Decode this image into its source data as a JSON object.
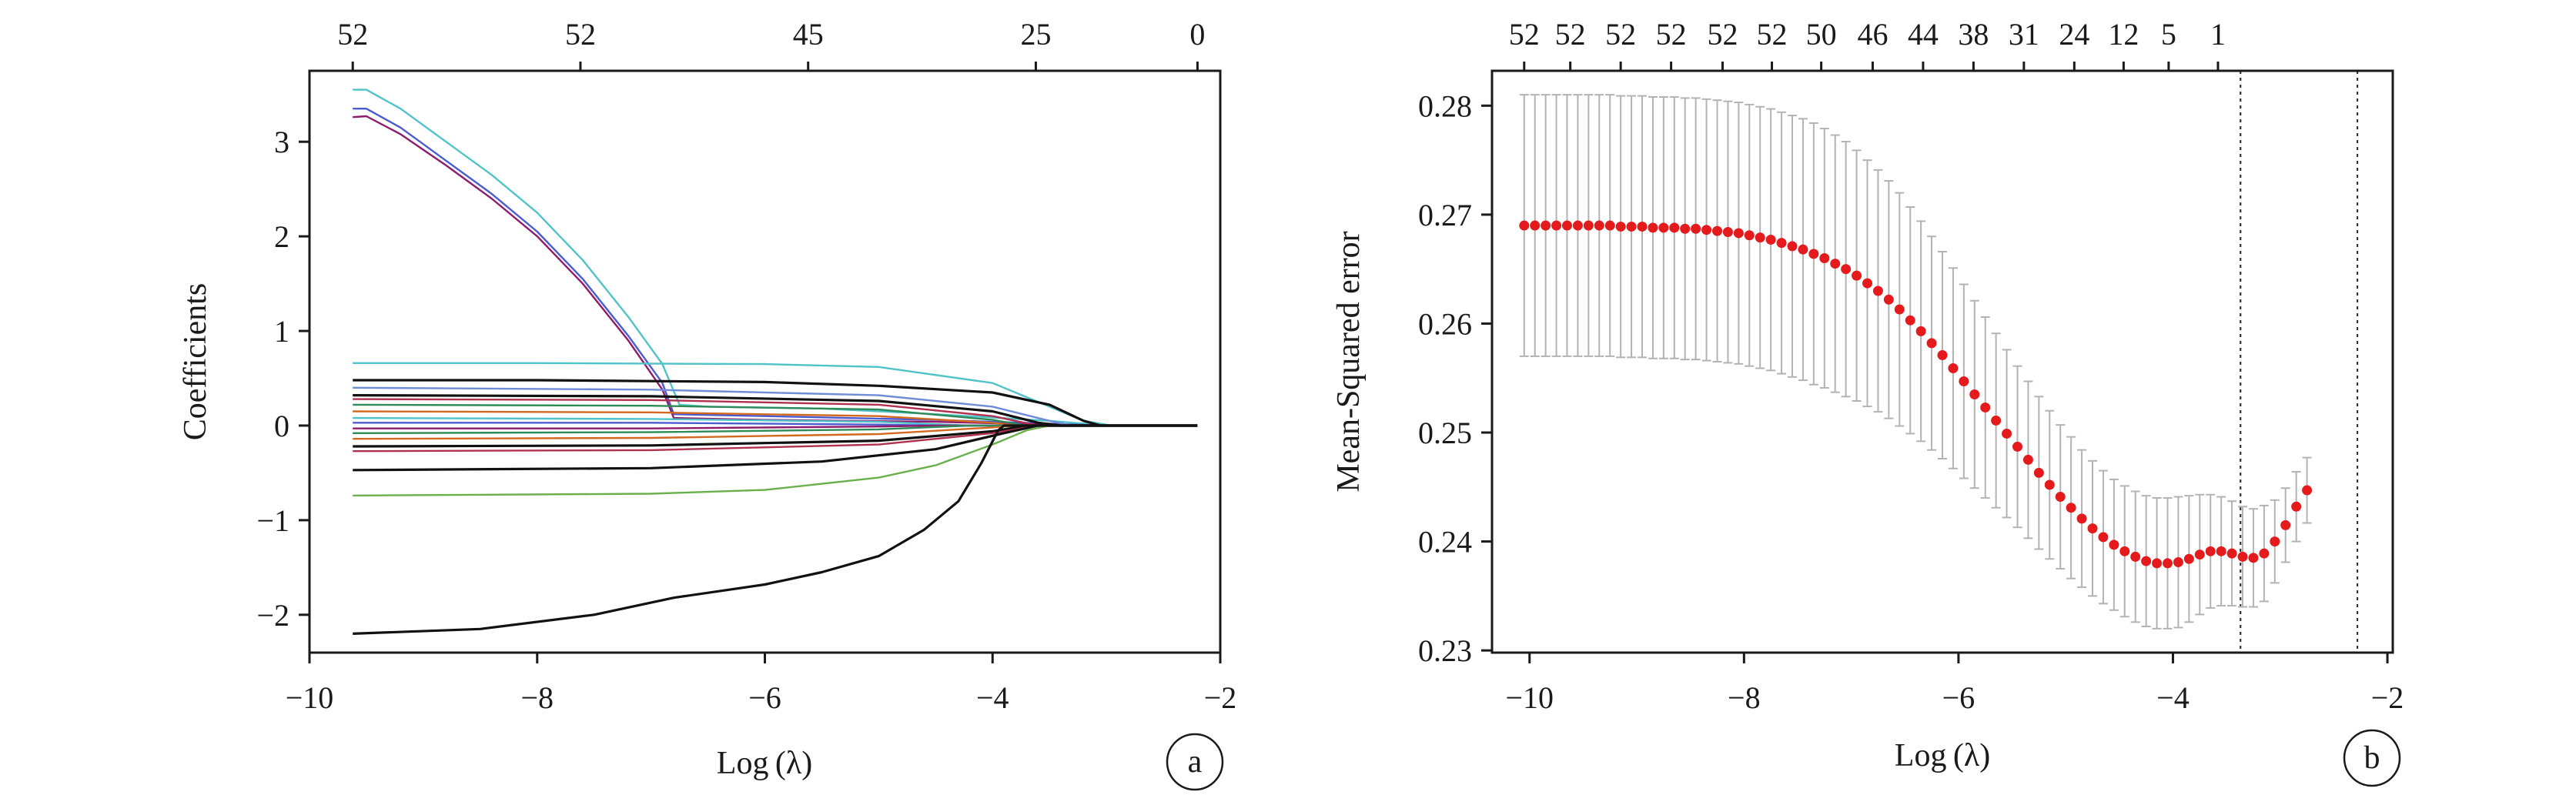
{
  "chart_data": [
    {
      "id": "a",
      "type": "line",
      "panel_label": "a",
      "xlabel": "Log (λ)",
      "ylabel": "Coefficients",
      "xlim": [
        -10,
        -2
      ],
      "ylim": [
        -2.4,
        3.75
      ],
      "xticks": [
        -10,
        -8,
        -6,
        -4,
        -2
      ],
      "xtick_labels": [
        "−10",
        "−8",
        "−6",
        "−4",
        "−2"
      ],
      "yticks": [
        -2,
        -1,
        0,
        1,
        2,
        3
      ],
      "ytick_labels": [
        "−2",
        "−1",
        "0",
        "1",
        "2",
        "3"
      ],
      "top_ticks": [
        {
          "x": -9.62,
          "label": "52"
        },
        {
          "x": -7.62,
          "label": "52"
        },
        {
          "x": -5.62,
          "label": "45"
        },
        {
          "x": -3.62,
          "label": "25"
        },
        {
          "x": -2.2,
          "label": "0"
        }
      ],
      "grid": false,
      "series": [
        {
          "color": "#4fc3c8",
          "points": [
            [
              -9.62,
              3.55
            ],
            [
              -9.5,
              3.55
            ],
            [
              -9.2,
              3.35
            ],
            [
              -8.8,
              3.0
            ],
            [
              -8.4,
              2.65
            ],
            [
              -8.0,
              2.25
            ],
            [
              -7.6,
              1.75
            ],
            [
              -7.2,
              1.15
            ],
            [
              -6.9,
              0.65
            ],
            [
              -6.75,
              0.22
            ],
            [
              -6.5,
              0.2
            ],
            [
              -5.5,
              0.18
            ],
            [
              -4.5,
              0.12
            ],
            [
              -3.5,
              0.05
            ],
            [
              -3.0,
              0.0
            ],
            [
              -2.2,
              0.0
            ]
          ]
        },
        {
          "color": "#4b5bd0",
          "points": [
            [
              -9.62,
              3.35
            ],
            [
              -9.5,
              3.35
            ],
            [
              -9.2,
              3.15
            ],
            [
              -8.8,
              2.8
            ],
            [
              -8.4,
              2.45
            ],
            [
              -8.0,
              2.05
            ],
            [
              -7.6,
              1.55
            ],
            [
              -7.2,
              0.95
            ],
            [
              -6.9,
              0.45
            ],
            [
              -6.8,
              0.12
            ],
            [
              -6.0,
              0.1
            ],
            [
              -4.5,
              0.06
            ],
            [
              -3.5,
              0.02
            ],
            [
              -3.0,
              0.0
            ],
            [
              -2.2,
              0.0
            ]
          ]
        },
        {
          "color": "#8e1b6b",
          "points": [
            [
              -9.62,
              3.26
            ],
            [
              -9.5,
              3.27
            ],
            [
              -9.2,
              3.08
            ],
            [
              -8.8,
              2.75
            ],
            [
              -8.4,
              2.4
            ],
            [
              -8.0,
              2.0
            ],
            [
              -7.6,
              1.5
            ],
            [
              -7.2,
              0.9
            ],
            [
              -6.9,
              0.38
            ],
            [
              -6.8,
              0.08
            ],
            [
              -6.0,
              0.06
            ],
            [
              -4.5,
              0.04
            ],
            [
              -3.5,
              0.01
            ],
            [
              -3.0,
              0.0
            ],
            [
              -2.2,
              0.0
            ]
          ]
        },
        {
          "color": "#4fc3c8",
          "points": [
            [
              -9.62,
              0.66
            ],
            [
              -8.0,
              0.66
            ],
            [
              -6.0,
              0.65
            ],
            [
              -5.0,
              0.62
            ],
            [
              -4.0,
              0.45
            ],
            [
              -3.5,
              0.2
            ],
            [
              -3.2,
              0.05
            ],
            [
              -2.95,
              0.0
            ],
            [
              -2.2,
              0.0
            ]
          ]
        },
        {
          "color": "#111111",
          "points": [
            [
              -9.62,
              0.48
            ],
            [
              -8.0,
              0.48
            ],
            [
              -6.0,
              0.46
            ],
            [
              -5.0,
              0.42
            ],
            [
              -4.0,
              0.35
            ],
            [
              -3.5,
              0.22
            ],
            [
              -3.2,
              0.05
            ],
            [
              -3.05,
              0.0
            ],
            [
              -2.2,
              0.0
            ]
          ]
        },
        {
          "color": "#6e8cd8",
          "points": [
            [
              -9.62,
              0.4
            ],
            [
              -7.0,
              0.38
            ],
            [
              -5.0,
              0.32
            ],
            [
              -4.0,
              0.2
            ],
            [
              -3.5,
              0.05
            ],
            [
              -3.3,
              0.0
            ],
            [
              -2.2,
              0.0
            ]
          ]
        },
        {
          "color": "#111111",
          "points": [
            [
              -9.62,
              0.32
            ],
            [
              -7.0,
              0.31
            ],
            [
              -5.0,
              0.26
            ],
            [
              -4.0,
              0.15
            ],
            [
              -3.6,
              0.03
            ],
            [
              -3.4,
              0.0
            ],
            [
              -2.2,
              0.0
            ]
          ]
        },
        {
          "color": "#b03050",
          "points": [
            [
              -9.62,
              0.28
            ],
            [
              -7.0,
              0.27
            ],
            [
              -5.0,
              0.22
            ],
            [
              -4.0,
              0.1
            ],
            [
              -3.6,
              0.0
            ],
            [
              -2.2,
              0.0
            ]
          ]
        },
        {
          "color": "#2e8b57",
          "points": [
            [
              -9.62,
              0.22
            ],
            [
              -7.0,
              0.21
            ],
            [
              -5.0,
              0.17
            ],
            [
              -4.0,
              0.06
            ],
            [
              -3.7,
              0.0
            ],
            [
              -2.2,
              0.0
            ]
          ]
        },
        {
          "color": "#d2691e",
          "points": [
            [
              -9.62,
              0.15
            ],
            [
              -7.0,
              0.14
            ],
            [
              -5.0,
              0.1
            ],
            [
              -4.0,
              0.03
            ],
            [
              -3.8,
              0.0
            ],
            [
              -2.2,
              0.0
            ]
          ]
        },
        {
          "color": "#4fc3c8",
          "points": [
            [
              -9.62,
              0.08
            ],
            [
              -7.0,
              0.07
            ],
            [
              -5.0,
              0.04
            ],
            [
              -4.2,
              0.0
            ],
            [
              -2.2,
              0.0
            ]
          ]
        },
        {
          "color": "#4b5bd0",
          "points": [
            [
              -9.62,
              0.03
            ],
            [
              -7.0,
              0.03
            ],
            [
              -5.0,
              0.01
            ],
            [
              -4.5,
              0.0
            ],
            [
              -2.2,
              0.0
            ]
          ]
        },
        {
          "color": "#8e1b6b",
          "points": [
            [
              -9.62,
              -0.03
            ],
            [
              -7.0,
              -0.03
            ],
            [
              -5.0,
              -0.01
            ],
            [
              -4.5,
              0.0
            ],
            [
              -2.2,
              0.0
            ]
          ]
        },
        {
          "color": "#2e8b57",
          "points": [
            [
              -9.62,
              -0.08
            ],
            [
              -7.0,
              -0.07
            ],
            [
              -5.0,
              -0.04
            ],
            [
              -4.2,
              0.0
            ],
            [
              -2.2,
              0.0
            ]
          ]
        },
        {
          "color": "#d2691e",
          "points": [
            [
              -9.62,
              -0.14
            ],
            [
              -7.0,
              -0.13
            ],
            [
              -5.0,
              -0.09
            ],
            [
              -4.0,
              -0.02
            ],
            [
              -3.8,
              0.0
            ],
            [
              -2.2,
              0.0
            ]
          ]
        },
        {
          "color": "#111111",
          "points": [
            [
              -9.62,
              -0.22
            ],
            [
              -7.0,
              -0.21
            ],
            [
              -5.0,
              -0.16
            ],
            [
              -4.0,
              -0.06
            ],
            [
              -3.7,
              0.0
            ],
            [
              -2.2,
              0.0
            ]
          ]
        },
        {
          "color": "#b03050",
          "points": [
            [
              -9.62,
              -0.27
            ],
            [
              -7.0,
              -0.26
            ],
            [
              -5.0,
              -0.2
            ],
            [
              -4.0,
              -0.08
            ],
            [
              -3.6,
              0.0
            ],
            [
              -2.2,
              0.0
            ]
          ]
        },
        {
          "color": "#111111",
          "points": [
            [
              -9.62,
              -0.47
            ],
            [
              -7.0,
              -0.45
            ],
            [
              -5.5,
              -0.38
            ],
            [
              -4.5,
              -0.25
            ],
            [
              -3.9,
              -0.08
            ],
            [
              -3.6,
              0.0
            ],
            [
              -2.2,
              0.0
            ]
          ]
        },
        {
          "color": "#6ab04c",
          "points": [
            [
              -9.62,
              -0.74
            ],
            [
              -7.0,
              -0.72
            ],
            [
              -6.0,
              -0.68
            ],
            [
              -5.0,
              -0.55
            ],
            [
              -4.5,
              -0.42
            ],
            [
              -4.0,
              -0.2
            ],
            [
              -3.7,
              -0.05
            ],
            [
              -3.5,
              0.0
            ],
            [
              -2.2,
              0.0
            ]
          ]
        },
        {
          "color": "#111111",
          "points": [
            [
              -9.62,
              -2.2
            ],
            [
              -8.5,
              -2.15
            ],
            [
              -7.5,
              -2.0
            ],
            [
              -6.8,
              -1.82
            ],
            [
              -6.0,
              -1.68
            ],
            [
              -5.5,
              -1.55
            ],
            [
              -5.0,
              -1.38
            ],
            [
              -4.6,
              -1.1
            ],
            [
              -4.3,
              -0.8
            ],
            [
              -4.1,
              -0.4
            ],
            [
              -3.95,
              -0.05
            ],
            [
              -3.9,
              0.0
            ],
            [
              -2.2,
              0.0
            ]
          ]
        }
      ]
    },
    {
      "id": "b",
      "type": "scatter",
      "panel_label": "b",
      "xlabel": "Log (λ)",
      "ylabel": "Mean-Squared error",
      "xlim": [
        -10.35,
        -1.95
      ],
      "ylim": [
        0.2298,
        0.2832
      ],
      "xticks": [
        -10,
        -8,
        -6,
        -4,
        -2
      ],
      "xtick_labels": [
        "−10",
        "−8",
        "−6",
        "−4",
        "−2"
      ],
      "yticks": [
        0.23,
        0.24,
        0.25,
        0.26,
        0.27,
        0.28
      ],
      "ytick_labels": [
        "0.23",
        "0.24",
        "0.25",
        "0.26",
        "0.27",
        "0.28"
      ],
      "top_ticks": [
        {
          "x": -10.05,
          "label": "52"
        },
        {
          "x": -9.62,
          "label": "52"
        },
        {
          "x": -9.15,
          "label": "52"
        },
        {
          "x": -8.68,
          "label": "52"
        },
        {
          "x": -8.2,
          "label": "52"
        },
        {
          "x": -7.74,
          "label": "52"
        },
        {
          "x": -7.28,
          "label": "50"
        },
        {
          "x": -6.8,
          "label": "46"
        },
        {
          "x": -6.33,
          "label": "44"
        },
        {
          "x": -5.86,
          "label": "38"
        },
        {
          "x": -5.39,
          "label": "31"
        },
        {
          "x": -4.92,
          "label": "24"
        },
        {
          "x": -4.46,
          "label": "12"
        },
        {
          "x": -4.04,
          "label": "5"
        },
        {
          "x": -3.58,
          "label": "1"
        }
      ],
      "vlines": [
        -3.37,
        -2.28
      ],
      "grid": false,
      "points": {
        "x_start": -10.05,
        "x_step": 0.1,
        "y": [
          0.269,
          0.269,
          0.269,
          0.269,
          0.269,
          0.269,
          0.269,
          0.269,
          0.269,
          0.2689,
          0.2689,
          0.2689,
          0.2688,
          0.2688,
          0.2688,
          0.2687,
          0.2687,
          0.2686,
          0.2685,
          0.2684,
          0.2683,
          0.2681,
          0.2679,
          0.2677,
          0.2674,
          0.2671,
          0.2668,
          0.2664,
          0.266,
          0.2655,
          0.265,
          0.2644,
          0.2637,
          0.263,
          0.2622,
          0.2613,
          0.2603,
          0.2593,
          0.2582,
          0.2571,
          0.2559,
          0.2547,
          0.2535,
          0.2523,
          0.2511,
          0.2499,
          0.2487,
          0.2475,
          0.2463,
          0.2452,
          0.2441,
          0.2431,
          0.2421,
          0.2412,
          0.2404,
          0.2397,
          0.2391,
          0.2386,
          0.2382,
          0.238,
          0.238,
          0.2381,
          0.2384,
          0.2388,
          0.2391,
          0.2391,
          0.2389,
          0.2386,
          0.2385,
          0.2389,
          0.24,
          0.2415,
          0.2432,
          0.2447
        ],
        "err": [
          0.012,
          0.012,
          0.012,
          0.012,
          0.012,
          0.012,
          0.012,
          0.012,
          0.012,
          0.012,
          0.012,
          0.012,
          0.012,
          0.012,
          0.012,
          0.012,
          0.012,
          0.012,
          0.012,
          0.012,
          0.012,
          0.012,
          0.012,
          0.012,
          0.012,
          0.012,
          0.012,
          0.012,
          0.0119,
          0.0118,
          0.0117,
          0.0115,
          0.0113,
          0.0111,
          0.0109,
          0.0107,
          0.0104,
          0.0101,
          0.0098,
          0.0095,
          0.0092,
          0.0089,
          0.0086,
          0.0083,
          0.008,
          0.0077,
          0.0074,
          0.0072,
          0.007,
          0.0068,
          0.0066,
          0.0065,
          0.0063,
          0.0062,
          0.0061,
          0.006,
          0.006,
          0.006,
          0.006,
          0.006,
          0.006,
          0.006,
          0.0058,
          0.0055,
          0.0052,
          0.005,
          0.0048,
          0.0046,
          0.0045,
          0.0044,
          0.0038,
          0.0034,
          0.0032,
          0.003
        ]
      }
    }
  ],
  "colors": {
    "axis": "#1a1a1a",
    "points": "#e41a1c",
    "errorbar": "#b3b3b3",
    "vline": "#333333"
  }
}
